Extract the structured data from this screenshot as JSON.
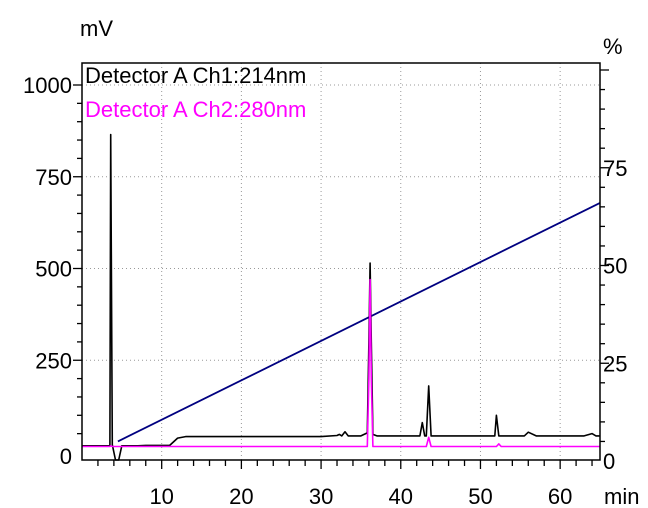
{
  "chart_data": {
    "type": "line",
    "y_left_unit": "mV",
    "y_right_unit": "%",
    "x_unit": "min",
    "xlim": [
      0,
      65
    ],
    "ylim_left": [
      0,
      1000
    ],
    "ylim_right": [
      0,
      100
    ],
    "x_ticks": [
      10,
      20,
      30,
      40,
      50,
      60
    ],
    "y_left_ticks": [
      0,
      250,
      500,
      750,
      1000
    ],
    "y_right_ticks": [
      0,
      25,
      50,
      75
    ],
    "grid": true,
    "legend_position": "top-left",
    "series": [
      {
        "name": "Detector A Ch1:214nm",
        "color": "#000000",
        "axis": "left",
        "x": [
          0,
          3.4,
          3.5,
          3.6,
          3.8,
          4.2,
          4.6,
          5.0,
          6.0,
          7.0,
          8.0,
          9.0,
          10.0,
          11.0,
          12.0,
          13.0,
          14.0,
          20.0,
          25.0,
          30.0,
          32.0,
          32.3,
          32.6,
          33.0,
          33.4,
          33.8,
          35.0,
          35.8,
          36.0,
          36.15,
          36.3,
          36.5,
          37.0,
          40.0,
          42.4,
          42.7,
          43.0,
          43.2,
          43.5,
          43.8,
          44.1,
          44.6,
          47.0,
          50.0,
          51.8,
          52.0,
          52.3,
          52.6,
          55.5,
          56.0,
          57.0,
          60.0,
          63.0,
          64.0,
          64.5,
          65.0
        ],
        "y": [
          17,
          17,
          18,
          865,
          20,
          -40,
          -40,
          17,
          17,
          17,
          18,
          18,
          18,
          18,
          38,
          42,
          42,
          42,
          42,
          42,
          45,
          48,
          44,
          55,
          44,
          44,
          44,
          52,
          300,
          515,
          300,
          48,
          44,
          44,
          44,
          80,
          44,
          44,
          180,
          44,
          44,
          44,
          44,
          44,
          44,
          100,
          44,
          44,
          44,
          54,
          44,
          44,
          44,
          50,
          44,
          44
        ]
      },
      {
        "name": "Detector A Ch2:280nm",
        "color": "#ff00ff",
        "axis": "left",
        "x": [
          0,
          3.5,
          3.6,
          3.8,
          5.0,
          20.0,
          35.8,
          36.0,
          36.15,
          36.3,
          36.5,
          43.2,
          43.5,
          43.8,
          52.0,
          52.3,
          52.6,
          65.0
        ],
        "y": [
          15,
          15,
          17,
          15,
          15,
          15,
          15,
          200,
          470,
          200,
          15,
          15,
          40,
          15,
          15,
          22,
          15,
          15
        ]
      },
      {
        "name": "gradient",
        "color": "#000080",
        "axis": "right",
        "x": [
          4.5,
          65.0
        ],
        "y": [
          5,
          66
        ]
      }
    ]
  },
  "legend": {
    "ch1_label": "Detector A Ch1:214nm",
    "ch2_label": "Detector A Ch2:280nm",
    "ch1_color": "#000000",
    "ch2_color": "#ff00ff"
  },
  "colors": {
    "gradient": "#000080",
    "grid": "#999999"
  }
}
